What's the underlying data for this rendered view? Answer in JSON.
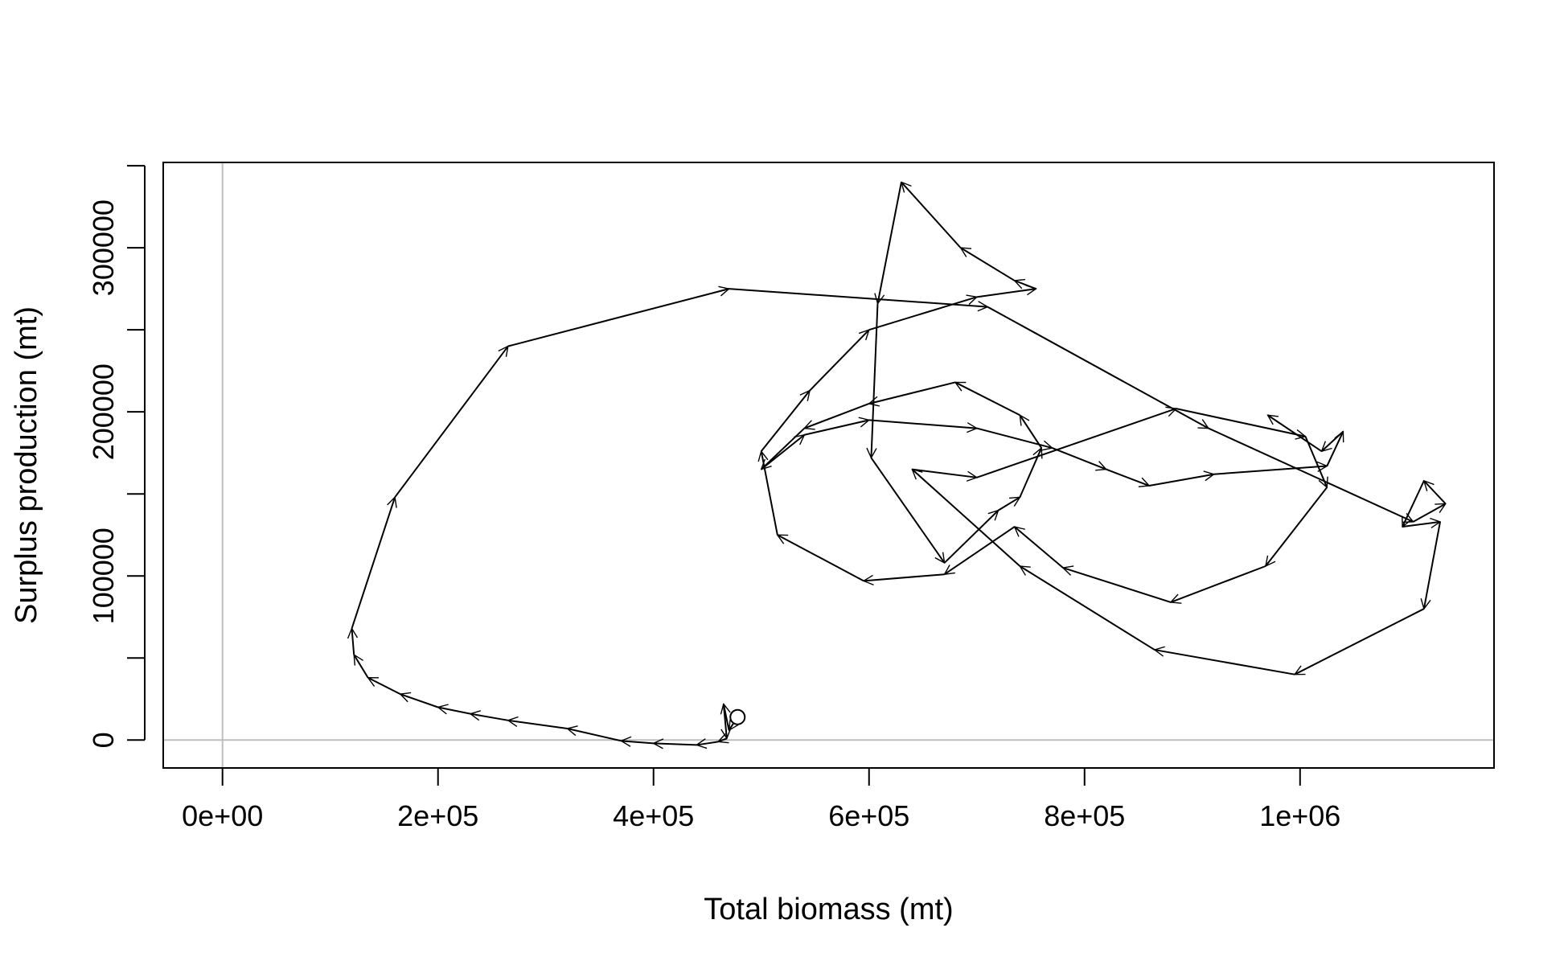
{
  "chart_data": {
    "type": "line",
    "title": "",
    "xlabel": "Total biomass (mt)",
    "ylabel": "Surplus production (mt)",
    "xlim": [
      -55000,
      1180000
    ],
    "ylim": [
      -17000,
      352000
    ],
    "x_ticks": [
      {
        "value": 0,
        "label": "0e+00"
      },
      {
        "value": 200000,
        "label": "2e+05"
      },
      {
        "value": 400000,
        "label": "4e+05"
      },
      {
        "value": 600000,
        "label": "6e+05"
      },
      {
        "value": 800000,
        "label": "8e+05"
      },
      {
        "value": 1000000,
        "label": "1e+06"
      }
    ],
    "y_ticks": [
      {
        "value": 0,
        "label": "0"
      },
      {
        "value": 50000,
        "label": ""
      },
      {
        "value": 100000,
        "label": "100000"
      },
      {
        "value": 150000,
        "label": ""
      },
      {
        "value": 200000,
        "label": "200000"
      },
      {
        "value": 250000,
        "label": ""
      },
      {
        "value": 300000,
        "label": "300000"
      },
      {
        "value": 350000,
        "label": ""
      }
    ],
    "reference_lines": {
      "x": 0,
      "y": 0,
      "color": "#bebebe"
    },
    "start_marker": "open-circle",
    "series": [
      {
        "x": [
          478000,
          470000,
          465000,
          468000,
          460000,
          440000,
          400000,
          370000,
          320000,
          265000,
          230000,
          200000,
          165000,
          135000,
          122000,
          120000,
          160000,
          265000,
          470000,
          710000,
          915000,
          1105000,
          1135000,
          1115000,
          1095000,
          1130000,
          1115000,
          995000,
          865000,
          740000,
          640000,
          700000,
          885000,
          1005000,
          1025000,
          968000,
          880000,
          780000,
          735000,
          670000,
          595000,
          515000,
          500000,
          545000,
          600000,
          700000,
          755000,
          735000,
          685000,
          630000,
          608000,
          602000,
          670000,
          720000,
          740000,
          760000,
          740000,
          680000,
          600000,
          540000,
          500000,
          540000,
          600000,
          700000,
          770000,
          820000,
          860000,
          920000,
          1025000,
          1040000,
          1020000,
          970000
        ],
        "y": [
          14000,
          6000,
          22000,
          1000,
          -1000,
          -3000,
          -2000,
          -500,
          7000,
          12000,
          16000,
          20000,
          28000,
          38000,
          52000,
          68000,
          148000,
          240000,
          275000,
          264000,
          190000,
          133000,
          144000,
          158000,
          130000,
          133000,
          80000,
          40000,
          55000,
          106000,
          165000,
          160000,
          202000,
          185000,
          154000,
          106000,
          84000,
          105000,
          130000,
          101000,
          97000,
          125000,
          176000,
          213000,
          250000,
          270000,
          275000,
          280000,
          300000,
          340000,
          266000,
          172000,
          108000,
          140000,
          148000,
          178000,
          198000,
          218000,
          205000,
          190000,
          165000,
          186000,
          195000,
          190000,
          178000,
          165000,
          155000,
          162000,
          167000,
          188000,
          176000,
          198000
        ]
      }
    ]
  }
}
